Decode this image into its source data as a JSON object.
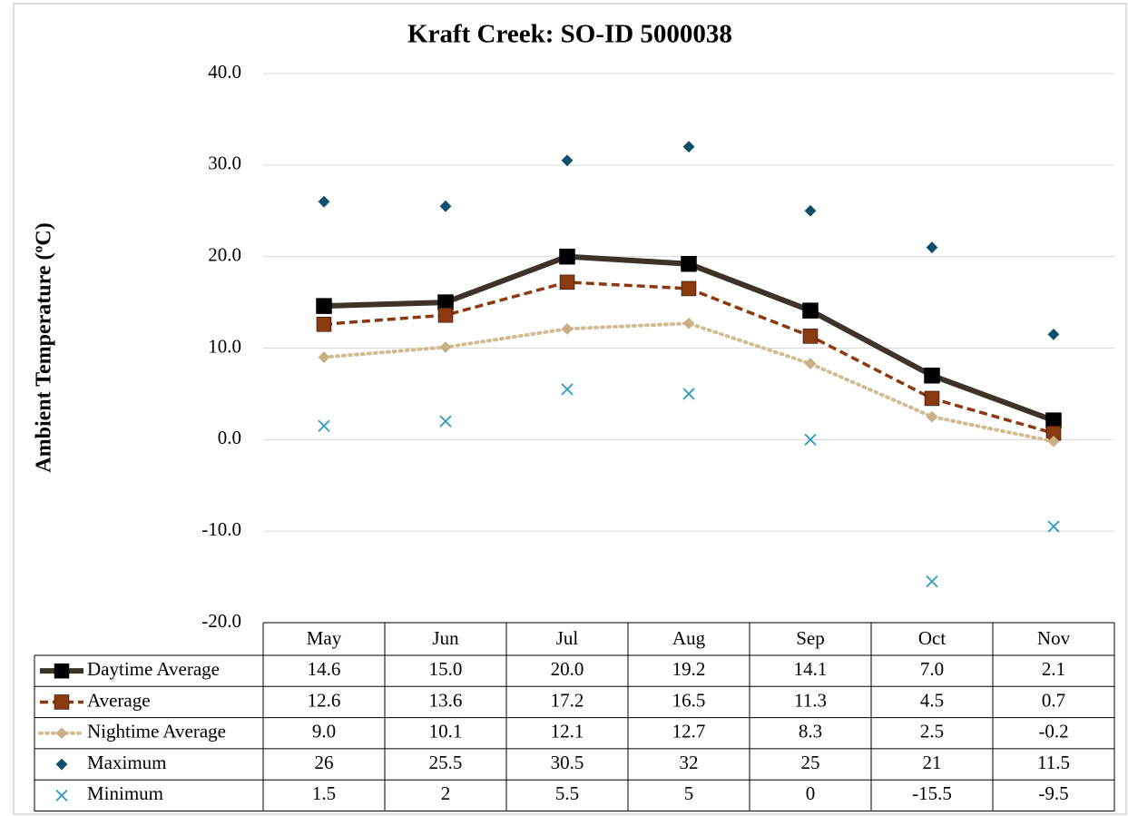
{
  "chart_data": {
    "type": "line",
    "title": "Kraft Creek: SO-ID 5000038",
    "y_label": "Ambient Temperature (ºC)",
    "categories": [
      "May",
      "Jun",
      "Jul",
      "Aug",
      "Sep",
      "Oct",
      "Nov"
    ],
    "ylim": [
      -20,
      40
    ],
    "yticks": [
      {
        "value": -20,
        "label": "-20.0"
      },
      {
        "value": -10,
        "label": "-10.0"
      },
      {
        "value": 0,
        "label": "0.0"
      },
      {
        "value": 10,
        "label": "10.0"
      },
      {
        "value": 20,
        "label": "20.0"
      },
      {
        "value": 30,
        "label": "30.0"
      },
      {
        "value": 40,
        "label": "40.0"
      }
    ],
    "grid": true,
    "series": [
      {
        "name": "Daytime Average",
        "color": "#3d3329",
        "marker_color": "#000000",
        "style": "solid",
        "marker": "square",
        "values": [
          14.6,
          15.0,
          20.0,
          19.2,
          14.1,
          7.0,
          2.1
        ],
        "value_labels": [
          "14.6",
          "15.0",
          "20.0",
          "19.2",
          "14.1",
          "7.0",
          "2.1"
        ]
      },
      {
        "name": "Average",
        "color": "#8b3a10",
        "marker_color": "#8b3a10",
        "style": "dashed",
        "marker": "square",
        "values": [
          12.6,
          13.6,
          17.2,
          16.5,
          11.3,
          4.5,
          0.7
        ],
        "value_labels": [
          "12.6",
          "13.6",
          "17.2",
          "16.5",
          "11.3",
          "4.5",
          "0.7"
        ]
      },
      {
        "name": "Nightime Average",
        "color": "#d1bc93",
        "marker_color": "#c8b084",
        "style": "dotted",
        "marker": "diamond",
        "values": [
          9.0,
          10.1,
          12.1,
          12.7,
          8.3,
          2.5,
          -0.2
        ],
        "value_labels": [
          "9.0",
          "10.1",
          "12.1",
          "12.7",
          "8.3",
          "2.5",
          "-0.2"
        ]
      },
      {
        "name": "Maximum",
        "color": "#0f4f6e",
        "marker_color": "#0f4f6e",
        "style": "none",
        "marker": "diamond",
        "values": [
          26,
          25.5,
          30.5,
          32,
          25,
          21,
          11.5
        ]
      },
      {
        "name": "Minimum",
        "color": "#2b9cc2",
        "marker_color": "#2b9cc2",
        "style": "none",
        "marker": "x",
        "values": [
          1.5,
          2,
          5.5,
          5,
          0,
          -15.5,
          -9.5
        ]
      }
    ]
  }
}
